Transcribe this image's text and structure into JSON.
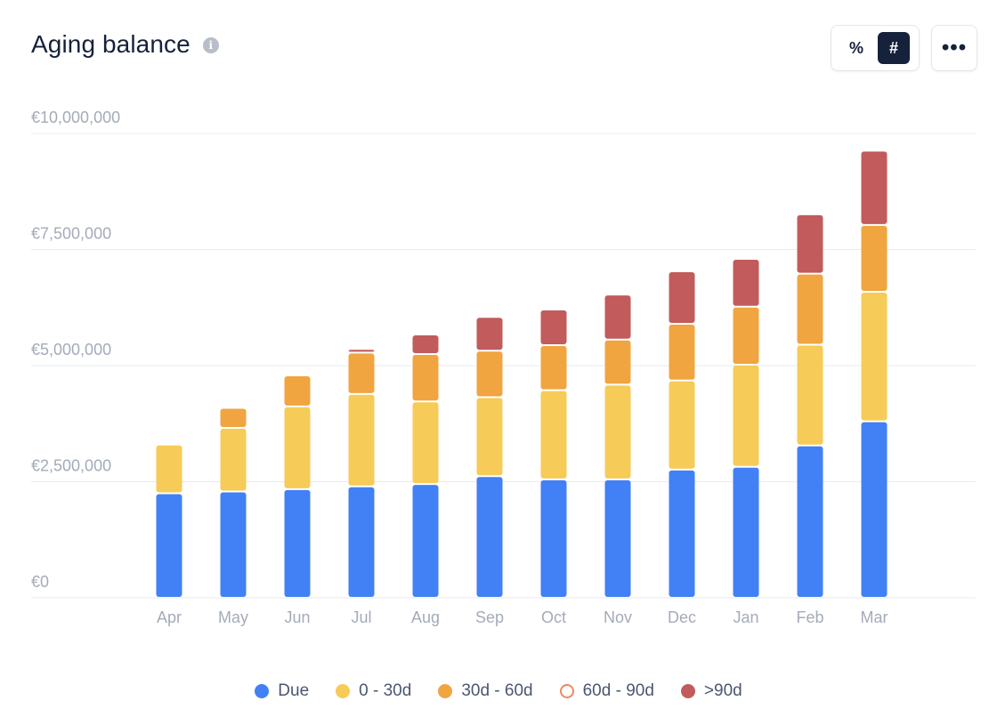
{
  "header": {
    "title": "Aging balance",
    "info_icon": "info-icon"
  },
  "controls": {
    "percent_label": "%",
    "number_label": "#",
    "active_mode": "number",
    "more_label": "•••"
  },
  "colors": {
    "due": "#4280f5",
    "d0_30": "#f6cb57",
    "d30_60": "#f0a540",
    "d60_90": "#ee8a5e",
    "d90": "#c25b5b",
    "grid": "#e8ebf0",
    "axis_text": "#a4abb8"
  },
  "chart_data": {
    "type": "bar",
    "stacked": true,
    "title": "Aging balance",
    "categories": [
      "Apr",
      "May",
      "Jun",
      "Jul",
      "Aug",
      "Sep",
      "Oct",
      "Nov",
      "Dec",
      "Jan",
      "Feb",
      "Mar"
    ],
    "ylim": [
      0,
      10000000
    ],
    "yticks": [
      0,
      2500000,
      5000000,
      7500000,
      10000000
    ],
    "ytick_labels": [
      "€0",
      "€2,500,000",
      "€5,000,000",
      "€7,500,000",
      "€10,000,000"
    ],
    "grid": true,
    "legend_position": "bottom",
    "series": [
      {
        "name": "Due",
        "key": "due",
        "values": [
          2250000,
          2290000,
          2340000,
          2400000,
          2450000,
          2620000,
          2550000,
          2550000,
          2760000,
          2820000,
          3280000,
          3800000
        ]
      },
      {
        "name": "0 - 30d",
        "key": "d0_30",
        "values": [
          1050000,
          1370000,
          1780000,
          1990000,
          1780000,
          1700000,
          1920000,
          2040000,
          1920000,
          2200000,
          2170000,
          2790000
        ]
      },
      {
        "name": "30d - 60d",
        "key": "d30_60",
        "values": [
          0,
          430000,
          670000,
          890000,
          1020000,
          1000000,
          970000,
          970000,
          1220000,
          1250000,
          1530000,
          1440000
        ]
      },
      {
        "name": "60d - 90d",
        "key": "d60_90",
        "values": [
          0,
          0,
          0,
          0,
          0,
          0,
          0,
          0,
          0,
          0,
          0,
          0
        ],
        "hollow": true
      },
      {
        "name": ">90d",
        "key": "d90",
        "values": [
          0,
          0,
          0,
          80000,
          420000,
          730000,
          770000,
          970000,
          1130000,
          1030000,
          1280000,
          1600000
        ]
      }
    ]
  }
}
